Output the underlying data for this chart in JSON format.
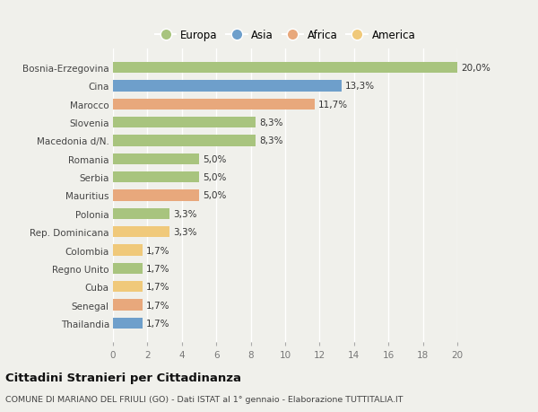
{
  "categories": [
    "Thailandia",
    "Senegal",
    "Cuba",
    "Regno Unito",
    "Colombia",
    "Rep. Dominicana",
    "Polonia",
    "Mauritius",
    "Serbia",
    "Romania",
    "Macedonia d/N.",
    "Slovenia",
    "Marocco",
    "Cina",
    "Bosnia-Erzegovina"
  ],
  "values": [
    1.7,
    1.7,
    1.7,
    1.7,
    1.7,
    3.3,
    3.3,
    5.0,
    5.0,
    5.0,
    8.3,
    8.3,
    11.7,
    13.3,
    20.0
  ],
  "labels": [
    "1,7%",
    "1,7%",
    "1,7%",
    "1,7%",
    "1,7%",
    "3,3%",
    "3,3%",
    "5,0%",
    "5,0%",
    "5,0%",
    "8,3%",
    "8,3%",
    "11,7%",
    "13,3%",
    "20,0%"
  ],
  "colors": [
    "#6e9fcb",
    "#e8a87c",
    "#f0c97a",
    "#a8c47e",
    "#f0c97a",
    "#f0c97a",
    "#a8c47e",
    "#e8a87c",
    "#a8c47e",
    "#a8c47e",
    "#a8c47e",
    "#a8c47e",
    "#e8a87c",
    "#6e9fcb",
    "#a8c47e"
  ],
  "legend_labels": [
    "Europa",
    "Asia",
    "Africa",
    "America"
  ],
  "legend_colors": [
    "#a8c47e",
    "#6e9fcb",
    "#e8a87c",
    "#f0c97a"
  ],
  "title": "Cittadini Stranieri per Cittadinanza",
  "subtitle": "COMUNE DI MARIANO DEL FRIULI (GO) - Dati ISTAT al 1° gennaio - Elaborazione TUTTITALIA.IT",
  "xlim": [
    0,
    20
  ],
  "xticks": [
    0,
    2,
    4,
    6,
    8,
    10,
    12,
    14,
    16,
    18,
    20
  ],
  "bg_color": "#f0f0eb",
  "plot_bg_color": "#f0f0eb",
  "grid_color": "#ffffff"
}
